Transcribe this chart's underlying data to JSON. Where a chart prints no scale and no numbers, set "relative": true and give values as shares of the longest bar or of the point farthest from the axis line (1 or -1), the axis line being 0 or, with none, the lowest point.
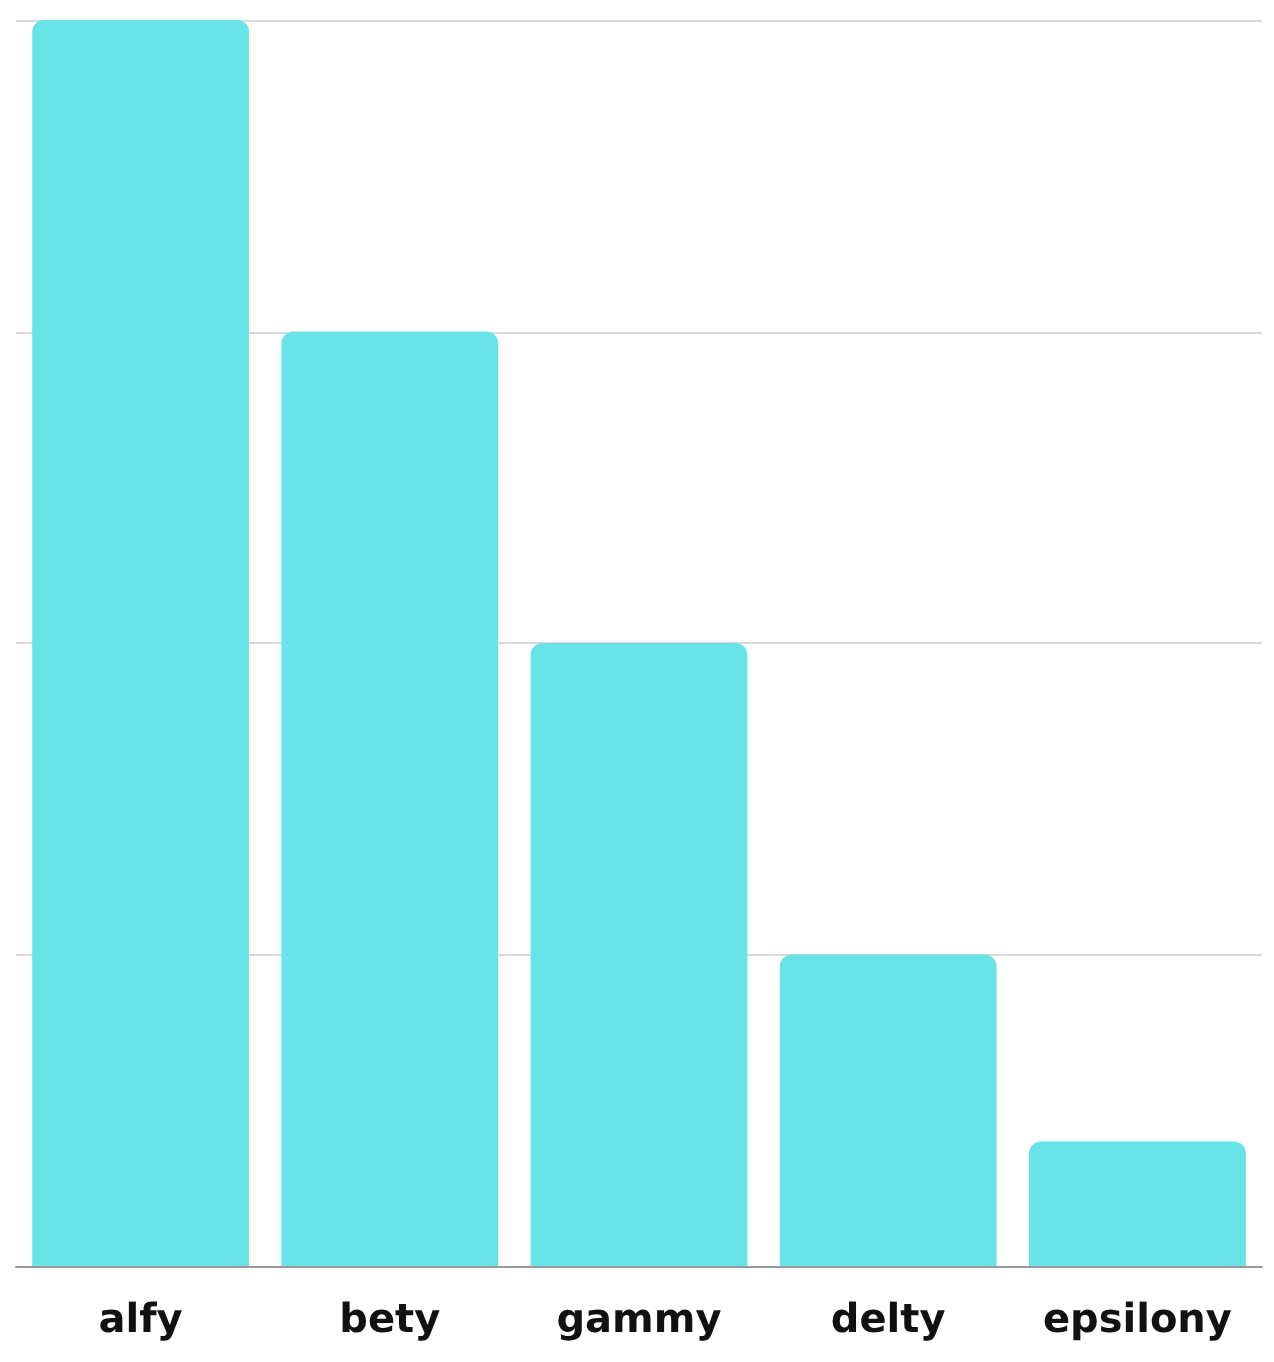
{
  "chart_data": {
    "type": "bar",
    "categories": [
      "alfy",
      "bety",
      "gammy",
      "delty",
      "epsilony"
    ],
    "values": [
      1,
      0.75,
      0.5,
      0.25,
      0.1
    ],
    "color": "#68e3e8",
    "relative": true,
    "grid": "y"
  }
}
